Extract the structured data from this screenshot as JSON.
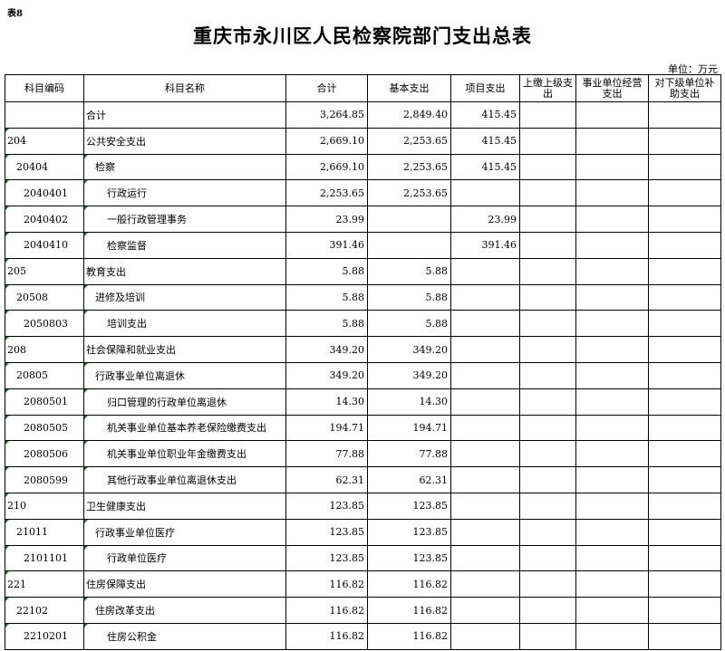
{
  "tag": "表8",
  "title": "重庆市永川区人民检察院部门支出总表",
  "unit": "单位：万元",
  "headers": [
    "科目编码",
    "科目名称",
    "合计",
    "基本支出",
    "项目支出",
    "上缴上级支出",
    "事业单位经营支出",
    "对下级单位补助支出"
  ],
  "rows": [
    {
      "code": "",
      "name": "合计",
      "level": 0,
      "total": "3,264.85",
      "basic": "2,849.40",
      "project": "415.45"
    },
    {
      "code": "204",
      "name": "公共安全支出",
      "level": 0,
      "total": "2,669.10",
      "basic": "2,253.65",
      "project": "415.45"
    },
    {
      "code": "20404",
      "name": "检察",
      "level": 1,
      "total": "2,669.10",
      "basic": "2,253.65",
      "project": "415.45"
    },
    {
      "code": "2040401",
      "name": "行政运行",
      "level": 2,
      "total": "2,253.65",
      "basic": "2,253.65",
      "project": ""
    },
    {
      "code": "2040402",
      "name": "一般行政管理事务",
      "level": 2,
      "total": "23.99",
      "basic": "",
      "project": "23.99"
    },
    {
      "code": "2040410",
      "name": "检察监督",
      "level": 2,
      "total": "391.46",
      "basic": "",
      "project": "391.46"
    },
    {
      "code": "205",
      "name": "教育支出",
      "level": 0,
      "total": "5.88",
      "basic": "5.88",
      "project": ""
    },
    {
      "code": "20508",
      "name": "进修及培训",
      "level": 1,
      "total": "5.88",
      "basic": "5.88",
      "project": ""
    },
    {
      "code": "2050803",
      "name": "培训支出",
      "level": 2,
      "total": "5.88",
      "basic": "5.88",
      "project": ""
    },
    {
      "code": "208",
      "name": "社会保障和就业支出",
      "level": 0,
      "total": "349.20",
      "basic": "349.20",
      "project": ""
    },
    {
      "code": "20805",
      "name": "行政事业单位离退休",
      "level": 1,
      "total": "349.20",
      "basic": "349.20",
      "project": ""
    },
    {
      "code": "2080501",
      "name": "归口管理的行政单位离退休",
      "level": 2,
      "total": "14.30",
      "basic": "14.30",
      "project": ""
    },
    {
      "code": "2080505",
      "name": "机关事业单位基本养老保险缴费支出",
      "level": 2,
      "total": "194.71",
      "basic": "194.71",
      "project": ""
    },
    {
      "code": "2080506",
      "name": "机关事业单位职业年金缴费支出",
      "level": 2,
      "total": "77.88",
      "basic": "77.88",
      "project": ""
    },
    {
      "code": "2080599",
      "name": "其他行政事业单位离退休支出",
      "level": 2,
      "total": "62.31",
      "basic": "62.31",
      "project": ""
    },
    {
      "code": "210",
      "name": "卫生健康支出",
      "level": 0,
      "total": "123.85",
      "basic": "123.85",
      "project": ""
    },
    {
      "code": "21011",
      "name": "行政事业单位医疗",
      "level": 1,
      "total": "123.85",
      "basic": "123.85",
      "project": ""
    },
    {
      "code": "2101101",
      "name": "行政单位医疗",
      "level": 2,
      "total": "123.85",
      "basic": "123.85",
      "project": ""
    },
    {
      "code": "221",
      "name": "住房保障支出",
      "level": 0,
      "total": "116.82",
      "basic": "116.82",
      "project": ""
    },
    {
      "code": "22102",
      "name": "住房改革支出",
      "level": 1,
      "total": "116.82",
      "basic": "116.82",
      "project": ""
    },
    {
      "code": "2210201",
      "name": "住房公积金",
      "level": 2,
      "total": "116.82",
      "basic": "116.82",
      "project": ""
    }
  ]
}
